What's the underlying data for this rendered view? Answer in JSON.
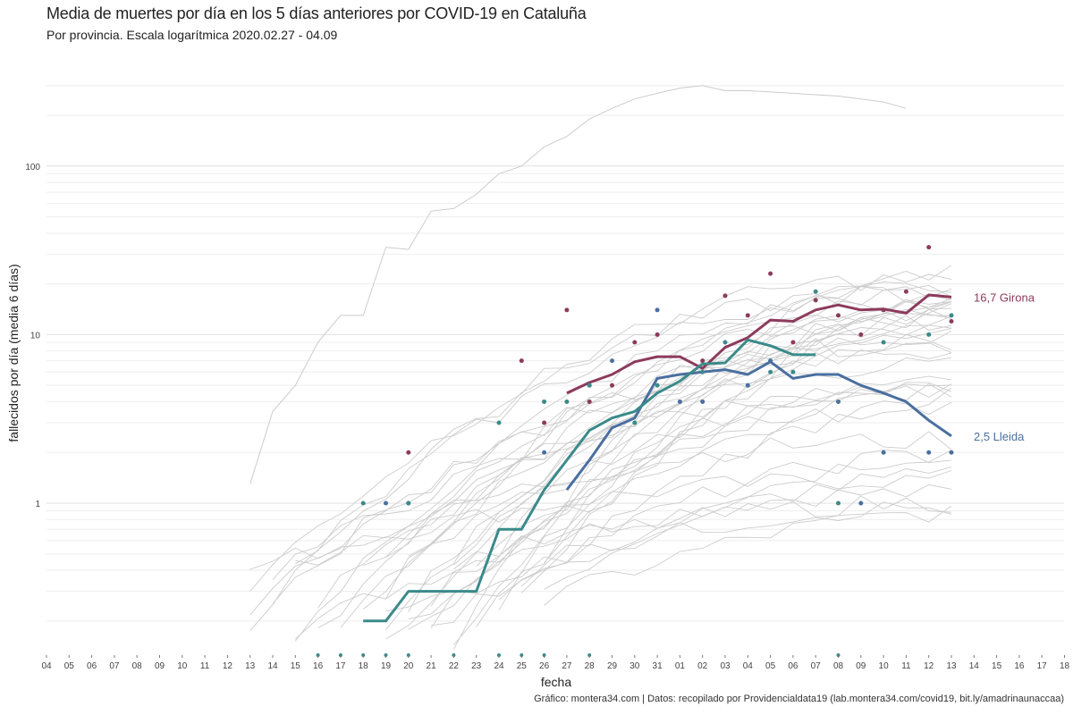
{
  "header": {
    "title": "Media de muertes por día en los 5 días anteriores por COVID-19 en Cataluña",
    "subtitle": "Por provincia. Escala logarítmica  2020.02.27 - 04.09"
  },
  "caption": "Gráfico: montera34.com | Datos: recopilado por Providencialdata19 (lab.montera34.com/covid19, bit.ly/amadrinaunaccaa)",
  "colors": {
    "girona": "#8c3b5c",
    "lleida": "#4a6fa0",
    "teal": "#3b8a8a",
    "gray": "#cccccc",
    "grid": "#e6e6e6"
  },
  "chart_data": {
    "type": "line",
    "xlabel": "fecha",
    "ylabel": "fallecidos por día (media 6 días)",
    "y_scale": "log",
    "ylim": [
      0.13,
      380
    ],
    "y_ticks": [
      1,
      10,
      100
    ],
    "y_tick_labels": [
      "1",
      "10",
      "100"
    ],
    "x_tick_labels": [
      "04",
      "05",
      "06",
      "07",
      "08",
      "09",
      "10",
      "11",
      "12",
      "13",
      "14",
      "15",
      "16",
      "17",
      "18",
      "19",
      "20",
      "21",
      "22",
      "23",
      "24",
      "25",
      "26",
      "27",
      "28",
      "29",
      "30",
      "31",
      "01",
      "02",
      "03",
      "04",
      "05",
      "06",
      "07",
      "08",
      "09",
      "10",
      "11",
      "12",
      "13",
      "14",
      "15",
      "16",
      "17",
      "18"
    ],
    "series": [
      {
        "name": "Girona",
        "end_label": "16,7 Girona",
        "line": [
          [
            23,
            4.5
          ],
          [
            24,
            5.2
          ],
          [
            25,
            5.8
          ],
          [
            26,
            6.9
          ],
          [
            27,
            7.4
          ],
          [
            28,
            7.4
          ],
          [
            29,
            6.3
          ],
          [
            30,
            8.4
          ],
          [
            31,
            9.6
          ],
          [
            32,
            12.2
          ],
          [
            33,
            12.0
          ],
          [
            34,
            14.0
          ],
          [
            35,
            15.0
          ],
          [
            36,
            14.0
          ],
          [
            37,
            14.2
          ],
          [
            38,
            13.4
          ],
          [
            39,
            17.2
          ],
          [
            40,
            16.7
          ]
        ],
        "points": [
          [
            21,
            7
          ],
          [
            22,
            3
          ],
          [
            23,
            14
          ],
          [
            24,
            4
          ],
          [
            25,
            5
          ],
          [
            26,
            9
          ],
          [
            27,
            10
          ],
          [
            29,
            7
          ],
          [
            30,
            17
          ],
          [
            31,
            13
          ],
          [
            32,
            23
          ],
          [
            33,
            9
          ],
          [
            34,
            16
          ],
          [
            35,
            13
          ],
          [
            36,
            10
          ],
          [
            37,
            14
          ],
          [
            38,
            18
          ],
          [
            39,
            33
          ],
          [
            40,
            12
          ],
          [
            16,
            2
          ]
        ]
      },
      {
        "name": "Lleida",
        "end_label": "2,5 Lleida",
        "line": [
          [
            23,
            1.2
          ],
          [
            24,
            1.8
          ],
          [
            25,
            2.8
          ],
          [
            26,
            3.2
          ],
          [
            27,
            5.5
          ],
          [
            28,
            5.8
          ],
          [
            29,
            6.0
          ],
          [
            30,
            6.2
          ],
          [
            31,
            5.8
          ],
          [
            32,
            6.9
          ],
          [
            33,
            5.5
          ],
          [
            34,
            5.8
          ],
          [
            35,
            5.8
          ],
          [
            36,
            5.0
          ],
          [
            37,
            4.5
          ],
          [
            38,
            4.0
          ],
          [
            39,
            3.1
          ],
          [
            40,
            2.5
          ]
        ],
        "points": [
          [
            15,
            1
          ],
          [
            16,
            1
          ],
          [
            22,
            2
          ],
          [
            24,
            5
          ],
          [
            25,
            7
          ],
          [
            27,
            14
          ],
          [
            28,
            4
          ],
          [
            29,
            4
          ],
          [
            31,
            5
          ],
          [
            32,
            7
          ],
          [
            35,
            4
          ],
          [
            36,
            1
          ],
          [
            37,
            2
          ],
          [
            39,
            2
          ],
          [
            40,
            2
          ]
        ]
      },
      {
        "name": "",
        "line": [
          [
            14,
            0.2
          ],
          [
            15,
            0.2
          ],
          [
            16,
            0.3
          ],
          [
            17,
            0.3
          ],
          [
            18,
            0.3
          ],
          [
            19,
            0.3
          ],
          [
            20,
            0.7
          ],
          [
            21,
            0.7
          ],
          [
            22,
            1.2
          ],
          [
            23,
            1.8
          ],
          [
            24,
            2.7
          ],
          [
            25,
            3.2
          ],
          [
            26,
            3.5
          ],
          [
            27,
            4.5
          ],
          [
            28,
            5.3
          ],
          [
            29,
            6.7
          ],
          [
            30,
            6.8
          ],
          [
            31,
            9.3
          ],
          [
            32,
            8.6
          ],
          [
            33,
            7.6
          ],
          [
            34,
            7.6
          ]
        ],
        "points": [
          [
            14,
            1
          ],
          [
            16,
            1
          ],
          [
            20,
            3
          ],
          [
            22,
            4
          ],
          [
            23,
            4
          ],
          [
            24,
            5
          ],
          [
            26,
            3
          ],
          [
            27,
            5
          ],
          [
            29,
            6
          ],
          [
            30,
            9
          ],
          [
            32,
            6
          ],
          [
            33,
            6
          ],
          [
            34,
            18
          ],
          [
            35,
            1
          ],
          [
            37,
            9
          ],
          [
            39,
            10
          ],
          [
            40,
            13
          ]
        ]
      }
    ],
    "background_series_count": 40,
    "legend": "none",
    "grid": true
  }
}
